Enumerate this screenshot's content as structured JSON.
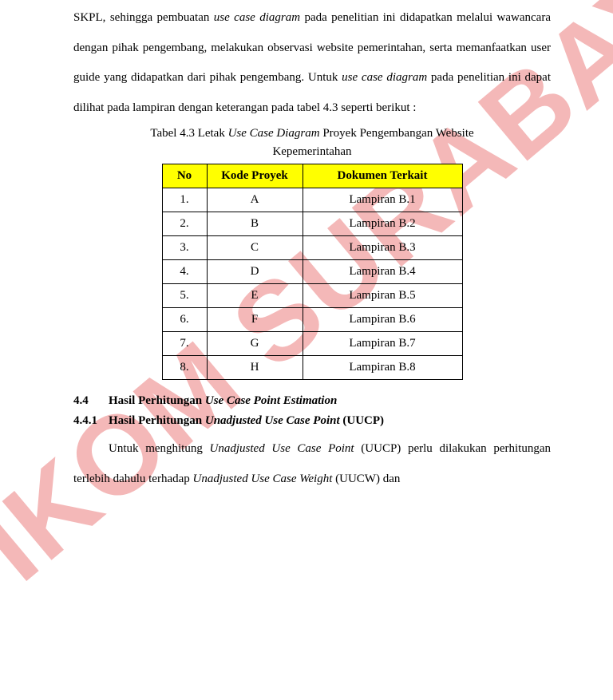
{
  "watermark": "STIKOM SURABAYA",
  "paragraph1_parts": {
    "t1": "SKPL, sehingga pembuatan ",
    "i1": "use case diagram",
    "t2": " pada penelitian ini didapatkan melalui wawancara dengan pihak pengembang, melakukan observasi website pemerintahan, serta memanfaatkan user guide yang didapatkan dari pihak pengembang. Untuk ",
    "i2": "use case diagram",
    "t3": " pada penelitian ini dapat dilihat pada lampiran dengan keterangan pada tabel 4.3 seperti berikut :"
  },
  "caption": {
    "pre": "Tabel 4.3 Letak ",
    "italic": "Use Case Diagram",
    "post": " Proyek Pengembangan Website",
    "line2": "Kepemerintahan"
  },
  "table": {
    "header_bg": "#ffff00",
    "headers": [
      "No",
      "Kode Proyek",
      "Dokumen Terkait"
    ],
    "rows": [
      [
        "1.",
        "A",
        "Lampiran B.1"
      ],
      [
        "2.",
        "B",
        "Lampiran B.2"
      ],
      [
        "3.",
        "C",
        "Lampiran B.3"
      ],
      [
        "4.",
        "D",
        "Lampiran B.4"
      ],
      [
        "5.",
        "E",
        "Lampiran B.5"
      ],
      [
        "6.",
        "F",
        "Lampiran B.6"
      ],
      [
        "7.",
        "G",
        "Lampiran B.7"
      ],
      [
        "8.",
        "H",
        "Lampiran B.8"
      ]
    ]
  },
  "section1": {
    "num": "4.4",
    "pre": "Hasil Perhitungan ",
    "italic": "Use Case Point Estimation"
  },
  "section2": {
    "num": "4.4.1",
    "pre": "Hasil Perhitungan ",
    "italic": "Unadjusted Use Case Point",
    "post": " (UUCP)"
  },
  "paragraph2": {
    "t1": "Untuk menghitung ",
    "i1": "Unadjusted Use Case Point",
    "t2": " (UUCP) perlu dilakukan perhitungan terlebih dahulu terhadap ",
    "i2": "Unadjusted Use Case Weight",
    "t3": " (UUCW) dan"
  }
}
